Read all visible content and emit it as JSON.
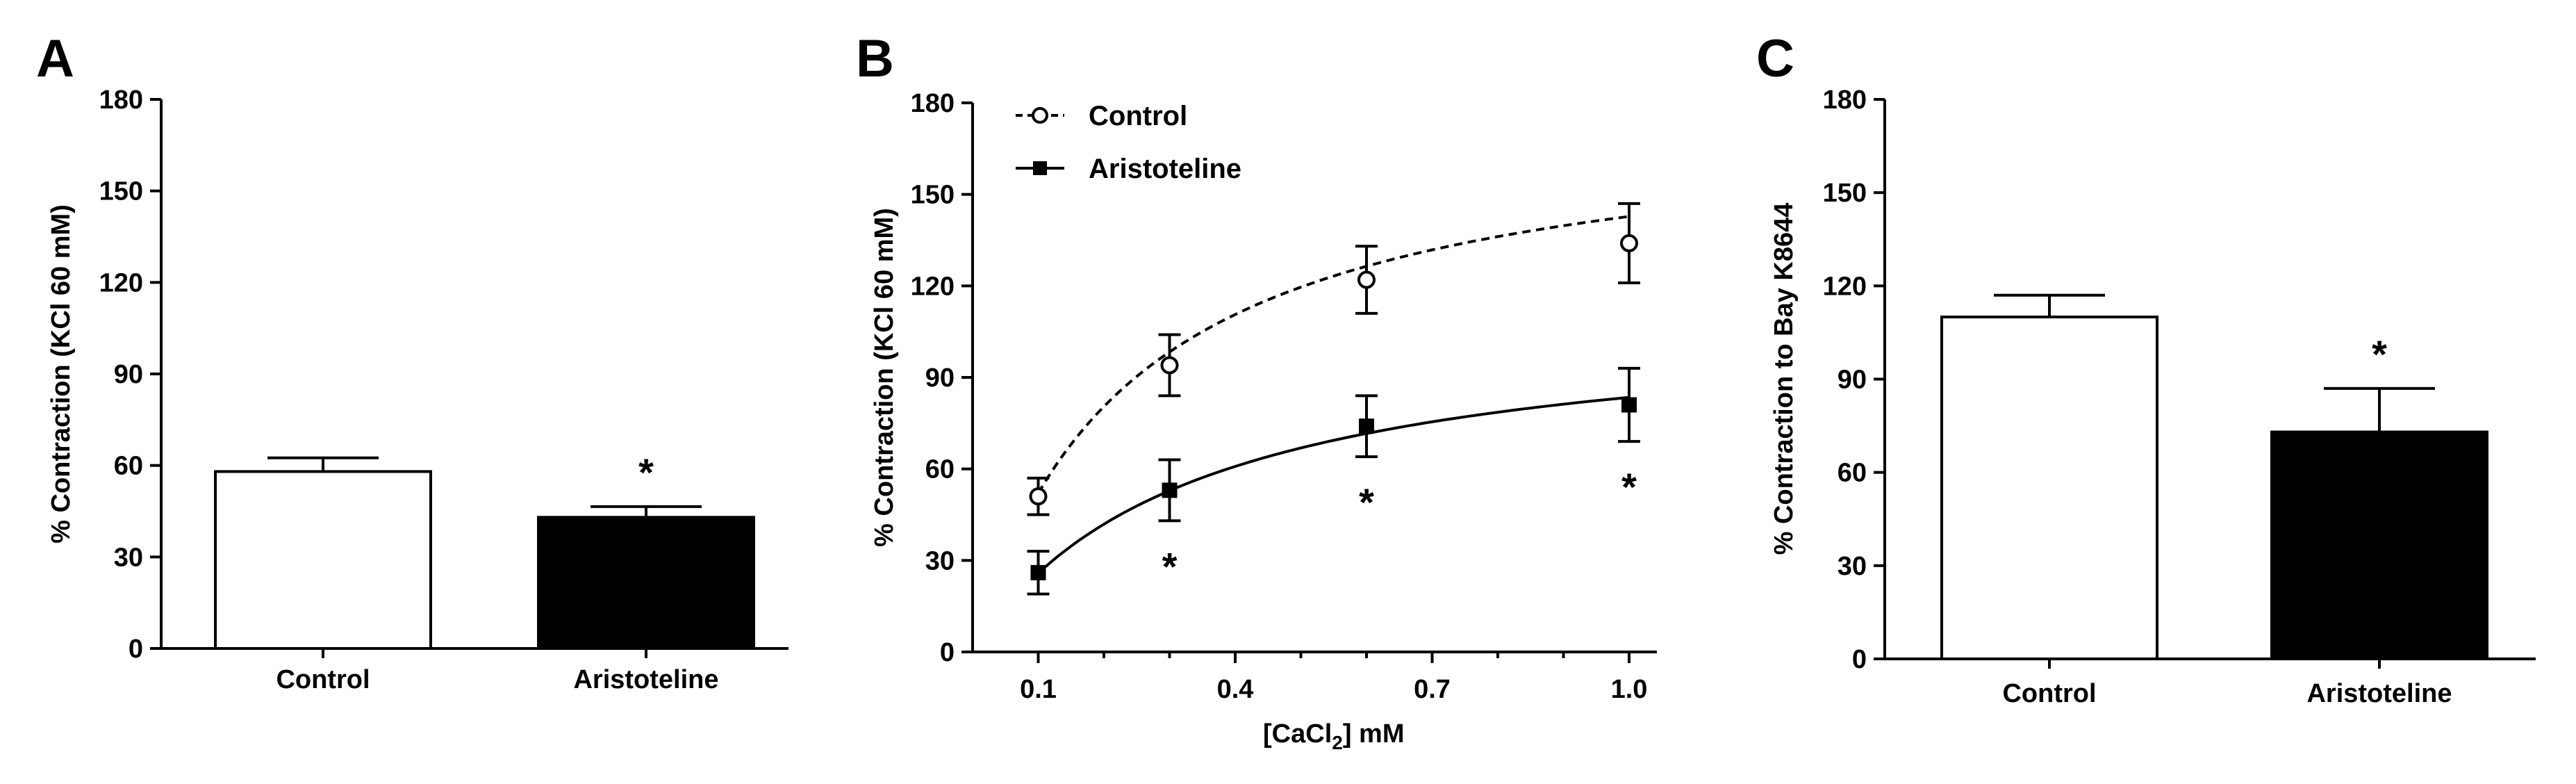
{
  "chart_data": [
    {
      "panel": "A",
      "type": "bar",
      "categories": [
        "Control",
        "Aristoteline"
      ],
      "values": [
        58,
        43
      ],
      "errors": [
        4.5,
        3.5
      ],
      "bar_colors": [
        "#ffffff",
        "#000000"
      ],
      "significance": [
        "",
        "*"
      ],
      "ylabel": "% Contraction (KCl 60 mM)",
      "ylim": [
        0,
        180
      ],
      "yticks": [
        0,
        30,
        60,
        90,
        120,
        150,
        180
      ],
      "grid": false
    },
    {
      "panel": "B",
      "type": "line",
      "xlabel": "[CaCl2] mM",
      "xlabel_main": "[CaCl",
      "xlabel_sub": "2",
      "xlabel_tail": "] mM",
      "ylabel": "% Contraction (KCl 60 mM)",
      "xlim": [
        0,
        1.0
      ],
      "xticks": [
        0.1,
        0.4,
        0.7,
        1.0
      ],
      "xtick_labels": [
        "0.1",
        "0.4",
        "0.7",
        "1.0"
      ],
      "ylim": [
        0,
        180
      ],
      "yticks": [
        0,
        30,
        60,
        90,
        120,
        150,
        180
      ],
      "legend_position": "top-left",
      "grid": false,
      "series": [
        {
          "name": "Control",
          "marker": "open-circle",
          "line_style": "dashed",
          "x": [
            0.1,
            0.3,
            0.6,
            1.0
          ],
          "y": [
            51,
            94,
            122,
            134
          ],
          "errors": [
            6,
            10,
            11,
            13
          ],
          "significance": [
            "",
            "",
            "",
            ""
          ]
        },
        {
          "name": "Aristoteline",
          "marker": "filled-square",
          "line_style": "solid",
          "x": [
            0.1,
            0.3,
            0.6,
            1.0
          ],
          "y": [
            26,
            53,
            74,
            81
          ],
          "errors": [
            7,
            10,
            10,
            12
          ],
          "significance": [
            "",
            "*",
            "*",
            "*"
          ]
        }
      ],
      "fit_curves": [
        {
          "name": "Control",
          "top": 177,
          "ec50": 0.24
        },
        {
          "name": "Aristoteline",
          "top": 111,
          "ec50": 0.33
        }
      ]
    },
    {
      "panel": "C",
      "type": "bar",
      "categories": [
        "Control",
        "Aristoteline"
      ],
      "values": [
        110,
        73
      ],
      "errors": [
        7,
        14
      ],
      "bar_colors": [
        "#ffffff",
        "#000000"
      ],
      "significance": [
        "",
        "*"
      ],
      "ylabel": "% Contraction to Bay K8644",
      "ylim": [
        0,
        180
      ],
      "yticks": [
        0,
        30,
        60,
        90,
        120,
        150,
        180
      ],
      "grid": false
    }
  ]
}
